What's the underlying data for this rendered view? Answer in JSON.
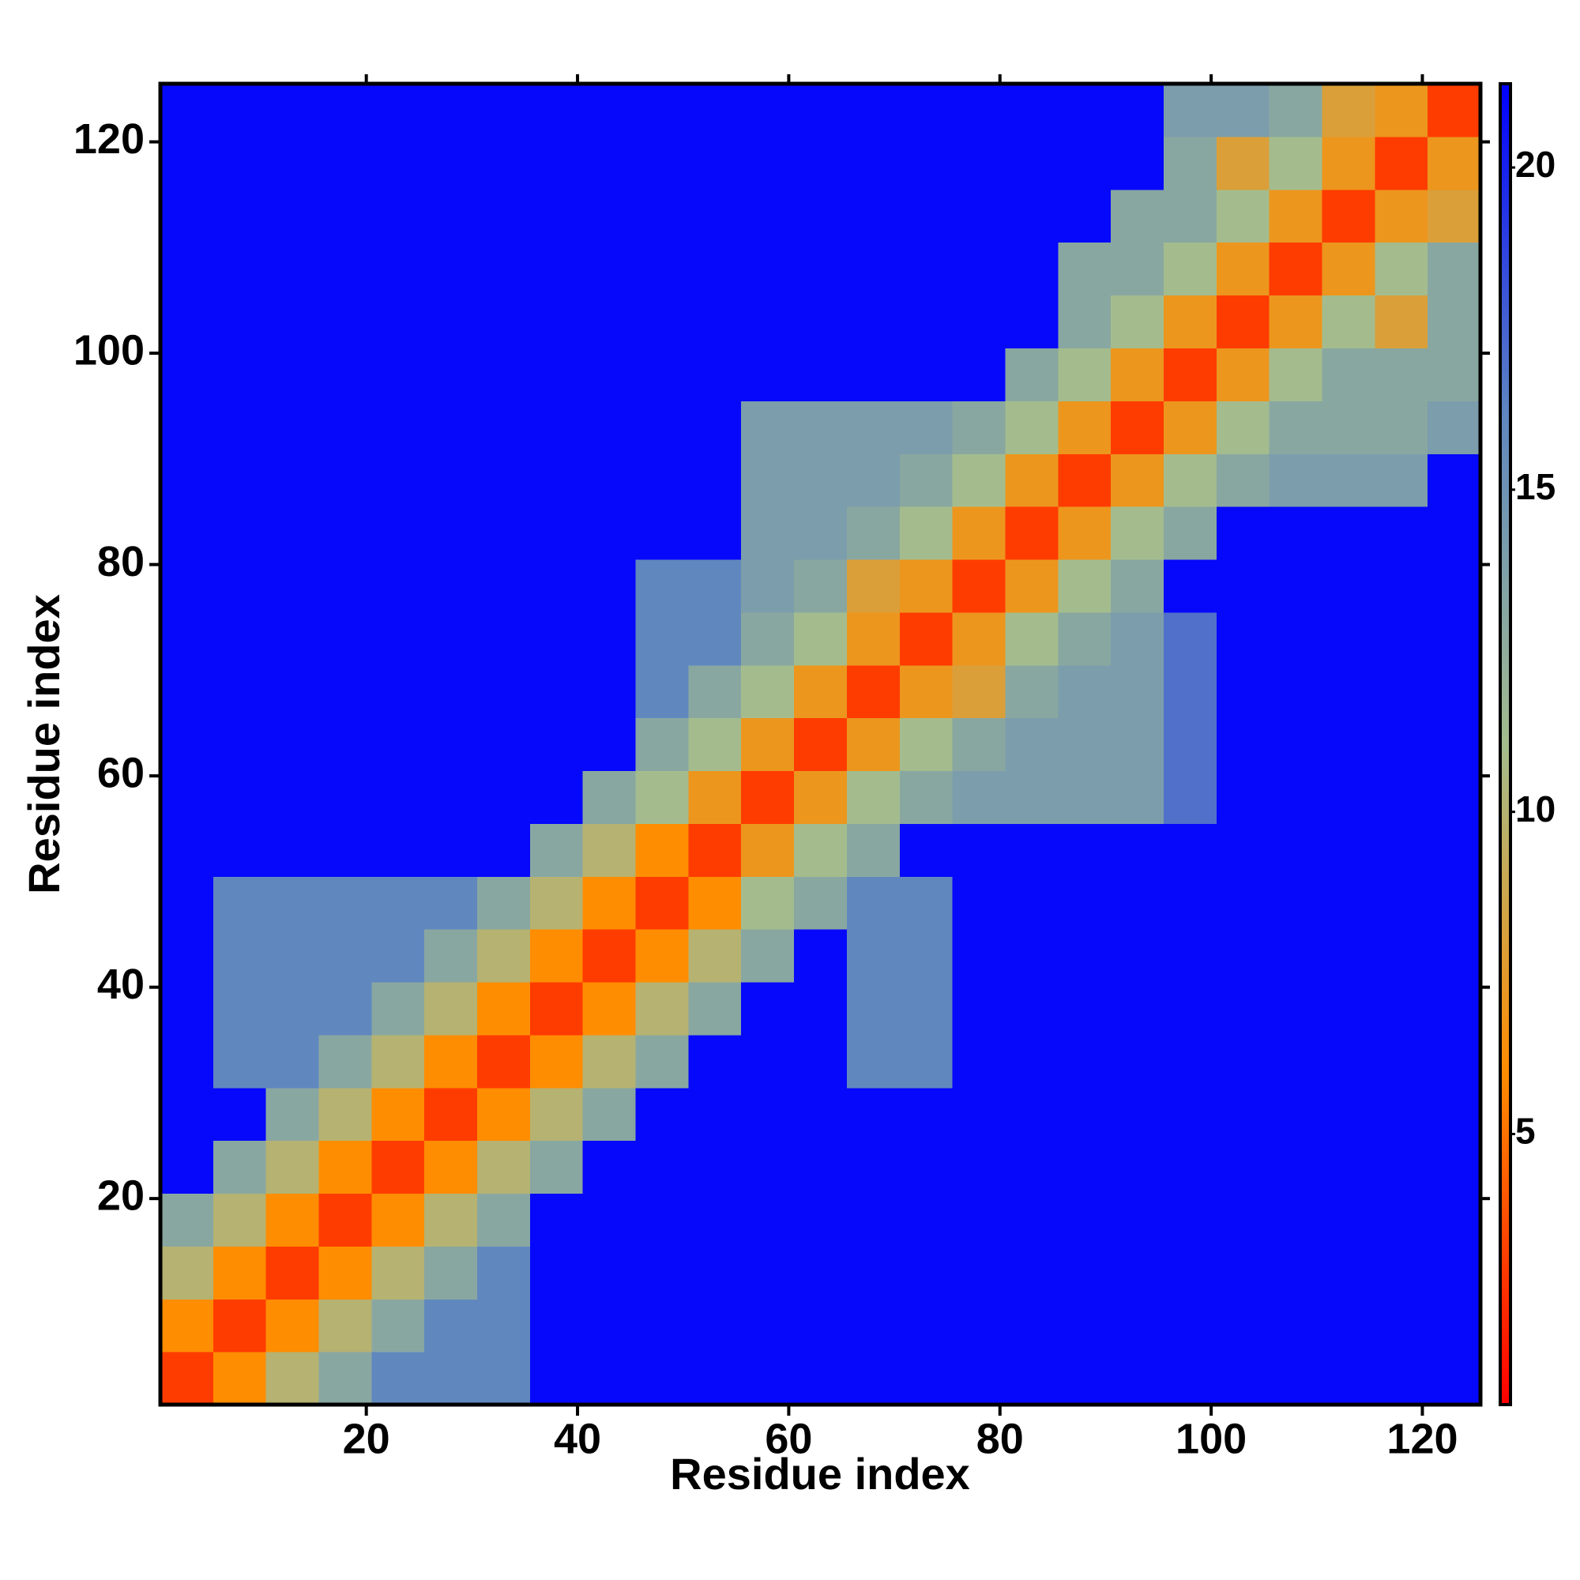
{
  "chart_data": {
    "type": "heatmap",
    "x_label": "Residue index",
    "y_label": "Residue index",
    "x": [
      3,
      8,
      13,
      18,
      23,
      28,
      33,
      38,
      43,
      48,
      53,
      58,
      63,
      68,
      73,
      78,
      83,
      88,
      93,
      98,
      103,
      108,
      113,
      118,
      123
    ],
    "y": [
      3,
      8,
      13,
      18,
      23,
      28,
      33,
      38,
      43,
      48,
      53,
      58,
      63,
      68,
      73,
      78,
      83,
      88,
      93,
      98,
      103,
      108,
      113,
      118,
      123
    ],
    "values": [
      [
        3,
        6,
        10,
        13,
        16,
        16,
        16,
        21,
        21,
        21,
        21,
        21,
        21,
        21,
        21,
        21,
        21,
        21,
        21,
        21,
        21,
        21,
        21,
        21,
        21
      ],
      [
        6,
        3,
        6,
        10,
        13,
        16,
        16,
        21,
        21,
        21,
        21,
        21,
        21,
        21,
        21,
        21,
        21,
        21,
        21,
        21,
        21,
        21,
        21,
        21,
        21
      ],
      [
        10,
        6,
        3,
        6,
        10,
        13,
        16,
        21,
        21,
        21,
        21,
        21,
        21,
        21,
        21,
        21,
        21,
        21,
        21,
        21,
        21,
        21,
        21,
        21,
        21
      ],
      [
        13,
        10,
        6,
        3,
        6,
        10,
        13,
        21,
        21,
        21,
        21,
        21,
        21,
        21,
        21,
        21,
        21,
        21,
        21,
        21,
        21,
        21,
        21,
        21,
        21
      ],
      [
        21,
        13,
        10,
        6,
        3,
        6,
        10,
        13,
        21,
        21,
        21,
        21,
        21,
        21,
        21,
        21,
        21,
        21,
        21,
        21,
        21,
        21,
        21,
        21,
        21
      ],
      [
        21,
        21,
        13,
        10,
        6,
        3,
        6,
        10,
        13,
        21,
        21,
        21,
        21,
        21,
        21,
        21,
        21,
        21,
        21,
        21,
        21,
        21,
        21,
        21,
        21
      ],
      [
        21,
        16,
        16,
        13,
        10,
        6,
        3,
        6,
        10,
        13,
        21,
        21,
        21,
        16,
        16,
        21,
        21,
        21,
        21,
        21,
        21,
        21,
        21,
        21,
        21
      ],
      [
        21,
        16,
        16,
        16,
        13,
        10,
        6,
        3,
        6,
        10,
        13,
        21,
        21,
        16,
        16,
        21,
        21,
        21,
        21,
        21,
        21,
        21,
        21,
        21,
        21
      ],
      [
        21,
        16,
        16,
        16,
        16,
        13,
        10,
        6,
        3,
        6,
        10,
        13,
        21,
        16,
        16,
        21,
        21,
        21,
        21,
        21,
        21,
        21,
        21,
        21,
        21
      ],
      [
        21,
        16,
        16,
        16,
        16,
        16,
        13,
        10,
        6,
        3,
        6,
        11,
        13,
        16,
        16,
        21,
        21,
        21,
        21,
        21,
        21,
        21,
        21,
        21,
        21
      ],
      [
        21,
        21,
        21,
        21,
        21,
        21,
        21,
        13,
        10,
        6,
        3,
        7,
        11,
        13,
        21,
        21,
        21,
        21,
        21,
        21,
        21,
        21,
        21,
        21,
        21
      ],
      [
        21,
        21,
        21,
        21,
        21,
        21,
        21,
        21,
        13,
        11,
        7,
        3,
        7,
        11,
        13,
        14,
        14,
        14,
        14,
        17,
        21,
        21,
        21,
        21,
        21
      ],
      [
        21,
        21,
        21,
        21,
        21,
        21,
        21,
        21,
        21,
        13,
        11,
        7,
        3,
        7,
        11,
        13,
        14,
        14,
        14,
        17,
        21,
        21,
        21,
        21,
        21
      ],
      [
        21,
        21,
        21,
        21,
        21,
        21,
        21,
        21,
        21,
        16,
        13,
        11,
        7,
        3,
        7,
        8,
        13,
        14,
        14,
        17,
        21,
        21,
        21,
        21,
        21
      ],
      [
        21,
        21,
        21,
        21,
        21,
        21,
        21,
        21,
        21,
        16,
        16,
        13,
        11,
        7,
        3,
        7,
        11,
        13,
        14,
        17,
        21,
        21,
        21,
        21,
        21
      ],
      [
        21,
        21,
        21,
        21,
        21,
        21,
        21,
        21,
        21,
        16,
        16,
        14,
        13,
        8,
        7,
        3,
        7,
        11,
        13,
        21,
        21,
        21,
        21,
        21,
        21
      ],
      [
        21,
        21,
        21,
        21,
        21,
        21,
        21,
        21,
        21,
        21,
        21,
        14,
        14,
        13,
        11,
        7,
        3,
        7,
        11,
        13,
        21,
        21,
        21,
        21,
        21
      ],
      [
        21,
        21,
        21,
        21,
        21,
        21,
        21,
        21,
        21,
        21,
        21,
        14,
        14,
        14,
        13,
        11,
        7,
        3,
        7,
        11,
        13,
        14,
        14,
        14,
        21
      ],
      [
        21,
        21,
        21,
        21,
        21,
        21,
        21,
        21,
        21,
        21,
        21,
        14,
        14,
        14,
        14,
        13,
        11,
        7,
        3,
        7,
        11,
        13,
        13,
        13,
        14
      ],
      [
        21,
        21,
        21,
        21,
        21,
        21,
        21,
        21,
        21,
        21,
        21,
        21,
        21,
        21,
        21,
        21,
        13,
        11,
        7,
        3,
        7,
        11,
        13,
        13,
        13
      ],
      [
        21,
        21,
        21,
        21,
        21,
        21,
        21,
        21,
        21,
        21,
        21,
        21,
        21,
        21,
        21,
        21,
        21,
        13,
        11,
        7,
        3,
        7,
        11,
        8,
        13
      ],
      [
        21,
        21,
        21,
        21,
        21,
        21,
        21,
        21,
        21,
        21,
        21,
        21,
        21,
        21,
        21,
        21,
        21,
        13,
        13,
        11,
        7,
        3,
        7,
        11,
        13
      ],
      [
        21,
        21,
        21,
        21,
        21,
        21,
        21,
        21,
        21,
        21,
        21,
        21,
        21,
        21,
        21,
        21,
        21,
        21,
        13,
        13,
        11,
        7,
        3,
        7,
        8
      ],
      [
        21,
        21,
        21,
        21,
        21,
        21,
        21,
        21,
        21,
        21,
        21,
        21,
        21,
        21,
        21,
        21,
        21,
        21,
        21,
        13,
        8,
        11,
        7,
        3,
        7
      ],
      [
        21,
        21,
        21,
        21,
        21,
        21,
        21,
        21,
        21,
        21,
        21,
        21,
        21,
        21,
        21,
        21,
        21,
        21,
        21,
        14,
        14,
        13,
        8,
        7,
        3
      ]
    ],
    "xlim": [
      0.5,
      125.5
    ],
    "ylim": [
      0.5,
      125.5
    ],
    "xticks": [
      20,
      40,
      60,
      80,
      100,
      120
    ],
    "yticks": [
      20,
      40,
      60,
      80,
      100,
      120
    ],
    "clim": [
      0.8,
      21.3
    ],
    "colorbar_ticks": [
      5,
      10,
      15,
      20
    ],
    "colormap": [
      "#ff0000",
      "#ff8c00",
      "#a3bc8e",
      "#5f86c0",
      "#0000ff"
    ]
  }
}
